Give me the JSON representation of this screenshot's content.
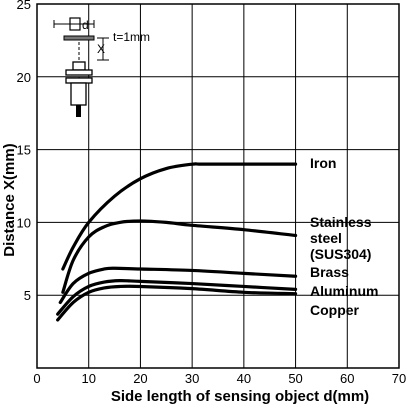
{
  "chart_data": {
    "type": "line",
    "xlabel": "Side length of sensing object d(mm)",
    "ylabel": "Distance X(mm)",
    "xlim": [
      0,
      70
    ],
    "ylim": [
      0,
      25
    ],
    "x_ticks": [
      "0",
      "10",
      "20",
      "30",
      "40",
      "50",
      "60",
      "70"
    ],
    "y_ticks": [
      "5",
      "10",
      "15",
      "20",
      "25"
    ],
    "grid": true,
    "series": [
      {
        "name": "Iron",
        "x": [
          5,
          7,
          10,
          15,
          20,
          25,
          30,
          32,
          40,
          50
        ],
        "y": [
          6.8,
          8.3,
          10.0,
          11.8,
          13.0,
          13.7,
          14.0,
          14.0,
          14.0,
          14.0
        ]
      },
      {
        "name": "Stainless steel (SUS304)",
        "x": [
          5,
          7,
          10,
          13,
          16,
          20,
          25,
          30,
          40,
          50
        ],
        "y": [
          5.2,
          7.4,
          9.0,
          9.7,
          10.0,
          10.1,
          10.0,
          9.8,
          9.5,
          9.1
        ]
      },
      {
        "name": "Brass",
        "x": [
          4.5,
          7,
          10,
          13,
          15,
          20,
          30,
          40,
          50
        ],
        "y": [
          4.5,
          5.8,
          6.5,
          6.8,
          6.85,
          6.8,
          6.7,
          6.5,
          6.3
        ]
      },
      {
        "name": "Aluminum",
        "x": [
          4,
          7,
          10,
          13,
          16,
          20,
          30,
          40,
          50
        ],
        "y": [
          3.7,
          4.9,
          5.6,
          5.9,
          6.0,
          5.95,
          5.8,
          5.6,
          5.4
        ]
      },
      {
        "name": "Copper",
        "x": [
          4,
          7,
          10,
          13,
          16,
          20,
          30,
          40,
          50
        ],
        "y": [
          3.3,
          4.5,
          5.2,
          5.5,
          5.6,
          5.6,
          5.45,
          5.2,
          5.1
        ]
      }
    ],
    "series_labels": [
      {
        "lines": [
          "Iron"
        ]
      },
      {
        "lines": [
          "Stainless",
          "steel",
          "(SUS304)"
        ]
      },
      {
        "lines": [
          "Brass"
        ]
      },
      {
        "lines": [
          "Aluminum"
        ]
      },
      {
        "lines": [
          "Copper"
        ]
      }
    ],
    "inset": {
      "label_d": "d",
      "label_x": "X",
      "label_t": "t=1mm"
    }
  }
}
